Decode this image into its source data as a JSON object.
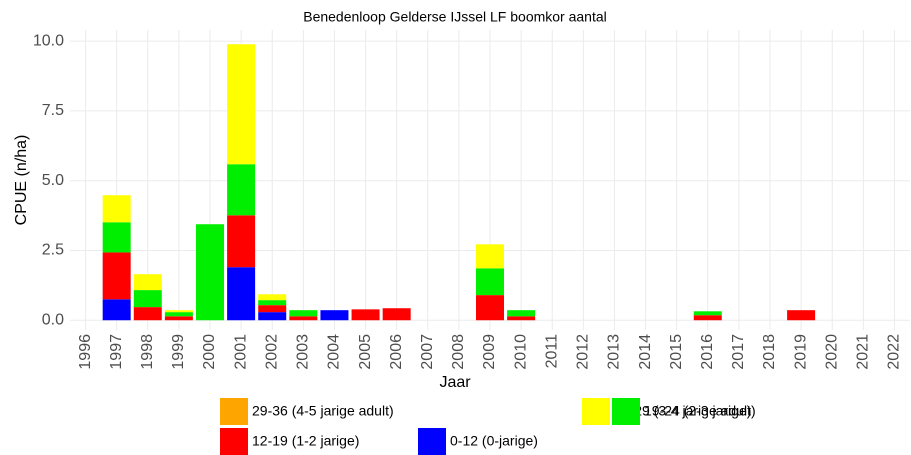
{
  "chart_data": {
    "type": "stacked_bar",
    "title": "Benedenloop Gelderse IJssel LF boomkor aantal",
    "x_label": "Jaar",
    "y_label": "CPUE (n/ha)",
    "categories": [
      "1996",
      "1997",
      "1998",
      "1999",
      "2000",
      "2001",
      "2002",
      "2003",
      "2004",
      "2005",
      "2006",
      "2007",
      "2008",
      "2009",
      "2010",
      "2011",
      "2012",
      "2013",
      "2014",
      "2015",
      "2016",
      "2017",
      "2018",
      "2019",
      "2020",
      "2021",
      "2022"
    ],
    "series": [
      {
        "name": "0-12 (0-jarige)",
        "color": "#0000ff",
        "values": [
          0,
          0.75,
          0,
          0,
          0,
          1.9,
          0.29,
          0,
          0.36,
          0,
          0,
          0,
          0,
          0,
          0,
          0,
          0,
          0,
          0,
          0,
          0,
          0,
          0,
          0,
          0,
          0,
          0
        ]
      },
      {
        "name": "12-19 (1-2 jarige)",
        "color": "#ff0000",
        "values": [
          0,
          1.68,
          0.47,
          0.14,
          0,
          1.86,
          0.25,
          0.14,
          0,
          0.39,
          0.43,
          0,
          0,
          0.9,
          0.14,
          0,
          0,
          0,
          0,
          0,
          0.18,
          0,
          0,
          0.36,
          0,
          0,
          0
        ]
      },
      {
        "name": "19-24 (2-3 jarige)",
        "color": "#00ee00",
        "values": [
          0,
          1.08,
          0.61,
          0.15,
          3.44,
          1.83,
          0.18,
          0.22,
          0,
          0,
          0,
          0,
          0,
          0.96,
          0.22,
          0,
          0,
          0,
          0,
          0,
          0.14,
          0,
          0,
          0,
          0,
          0,
          0
        ]
      },
      {
        "name": "24-29 (3-4 jarige adult)",
        "color": "#ffff00",
        "values": [
          0,
          0.97,
          0.57,
          0.07,
          0,
          4.3,
          0.21,
          0,
          0,
          0,
          0,
          0,
          0,
          0.86,
          0,
          0,
          0,
          0,
          0,
          0,
          0,
          0,
          0,
          0,
          0,
          0,
          0
        ]
      },
      {
        "name": "29-36 (4-5 jarige adult)",
        "color": "#ffa500",
        "values": [
          0,
          0,
          0,
          0,
          0,
          0,
          0,
          0,
          0,
          0,
          0,
          0,
          0,
          0,
          0,
          0,
          0,
          0,
          0,
          0,
          0,
          0,
          0,
          0,
          0,
          0,
          0
        ]
      }
    ],
    "ylim": [
      -0.35,
      10.4
    ],
    "yticks": [
      {
        "value": 0,
        "label": "0.0"
      },
      2.5,
      {
        "value": 5,
        "label": "5.0"
      },
      7.5,
      {
        "value": 10,
        "label": "10.0"
      }
    ],
    "grid": true
  }
}
